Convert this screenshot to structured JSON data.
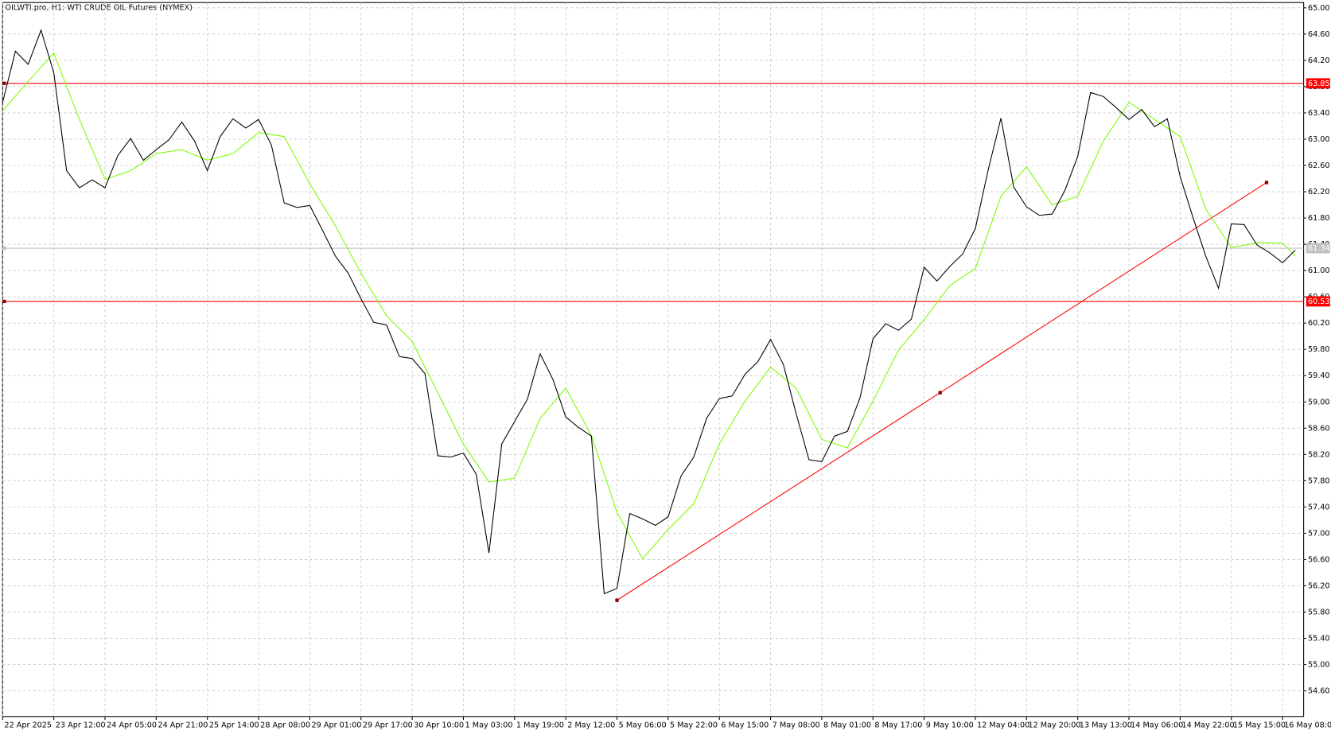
{
  "chart_data": {
    "type": "line",
    "title": "OILWTI.pro, H1:  WTI CRUDE OIL Futures (NYMEX)",
    "grid": true,
    "xlim": [
      0,
      406.6
    ],
    "ylim": [
      54.21,
      65.08
    ],
    "xticks": [
      {
        "value": 0,
        "label": "22 Apr 2025"
      },
      {
        "value": 16,
        "label": "23 Apr 12:00"
      },
      {
        "value": 32,
        "label": "24 Apr 05:00"
      },
      {
        "value": 48,
        "label": "24 Apr 21:00"
      },
      {
        "value": 64,
        "label": "25 Apr 14:00"
      },
      {
        "value": 80,
        "label": "28 Apr 08:00"
      },
      {
        "value": 96,
        "label": "29 Apr 01:00"
      },
      {
        "value": 112,
        "label": "29 Apr 17:00"
      },
      {
        "value": 128,
        "label": "30 Apr 10:00"
      },
      {
        "value": 144,
        "label": "1 May 03:00"
      },
      {
        "value": 160,
        "label": "1 May 19:00"
      },
      {
        "value": 176,
        "label": "2 May 12:00"
      },
      {
        "value": 192,
        "label": "5 May 06:00"
      },
      {
        "value": 208,
        "label": "5 May 22:00"
      },
      {
        "value": 224,
        "label": "6 May 15:00"
      },
      {
        "value": 240,
        "label": "7 May 08:00"
      },
      {
        "value": 256,
        "label": "8 May 01:00"
      },
      {
        "value": 272,
        "label": "8 May 17:00"
      },
      {
        "value": 288,
        "label": "9 May 10:00"
      },
      {
        "value": 304,
        "label": "12 May 04:00"
      },
      {
        "value": 320,
        "label": "12 May 20:00"
      },
      {
        "value": 336,
        "label": "13 May 13:00"
      },
      {
        "value": 352,
        "label": "14 May 06:00"
      },
      {
        "value": 368,
        "label": "14 May 22:00"
      },
      {
        "value": 384,
        "label": "15 May 15:00"
      },
      {
        "value": 400,
        "label": "16 May 08:00"
      }
    ],
    "yticks": [
      {
        "value": 54.6,
        "label": "54.60"
      },
      {
        "value": 55,
        "label": "55.00"
      },
      {
        "value": 55.4,
        "label": "55.40"
      },
      {
        "value": 55.8,
        "label": "55.80"
      },
      {
        "value": 56.2,
        "label": "56.20"
      },
      {
        "value": 56.6,
        "label": "56.60"
      },
      {
        "value": 57,
        "label": "57.00"
      },
      {
        "value": 57.4,
        "label": "57.40"
      },
      {
        "value": 57.8,
        "label": "57.80"
      },
      {
        "value": 58.2,
        "label": "58.20"
      },
      {
        "value": 58.6,
        "label": "58.60"
      },
      {
        "value": 59,
        "label": "59.00"
      },
      {
        "value": 59.4,
        "label": "59.40"
      },
      {
        "value": 59.8,
        "label": "59.80"
      },
      {
        "value": 60.2,
        "label": "60.20"
      },
      {
        "value": 60.6,
        "label": "60.60"
      },
      {
        "value": 61,
        "label": "61.00"
      },
      {
        "value": 61.4,
        "label": "61.40"
      },
      {
        "value": 61.8,
        "label": "61.80"
      },
      {
        "value": 62.2,
        "label": "62.20"
      },
      {
        "value": 62.6,
        "label": "62.60"
      },
      {
        "value": 63,
        "label": "63.00"
      },
      {
        "value": 63.4,
        "label": "63.40"
      },
      {
        "value": 63.8,
        "label": "63.80"
      },
      {
        "value": 64.2,
        "label": "64.20"
      },
      {
        "value": 64.6,
        "label": "64.60"
      },
      {
        "value": 65,
        "label": "65.00"
      }
    ],
    "series": [
      {
        "color": "#000000",
        "x": [
          0,
          4,
          8,
          12,
          16,
          20,
          24,
          28,
          32,
          36,
          40,
          44,
          48,
          52,
          56,
          60,
          64,
          68,
          72,
          76,
          80,
          84,
          88,
          92,
          96,
          100,
          104,
          108,
          112,
          116,
          120,
          124,
          128,
          132,
          136,
          140,
          144,
          148,
          152,
          156,
          160,
          164,
          168,
          172,
          176,
          180,
          184,
          188,
          192,
          196,
          200,
          204,
          208,
          212,
          216,
          220,
          224,
          228,
          232,
          236,
          240,
          244,
          248,
          252,
          256,
          260,
          264,
          268,
          272,
          276,
          280,
          284,
          288,
          292,
          296,
          300,
          304,
          308,
          312,
          316,
          320,
          324,
          328,
          332,
          336,
          340,
          344,
          348,
          352,
          356,
          360,
          364,
          368,
          372,
          376,
          380,
          384,
          388,
          392,
          396,
          400,
          404
        ],
        "values": [
          63.56,
          64.34,
          64.14,
          64.66,
          64.01,
          62.52,
          62.26,
          62.38,
          62.26,
          62.75,
          63.01,
          62.68,
          62.84,
          62.99,
          63.26,
          62.97,
          62.52,
          63.04,
          63.31,
          63.17,
          63.3,
          62.91,
          62.03,
          61.96,
          61.99,
          61.61,
          61.22,
          60.96,
          60.57,
          60.21,
          60.17,
          59.69,
          59.66,
          59.43,
          58.18,
          58.16,
          58.22,
          57.9,
          56.7,
          58.36,
          58.7,
          59.04,
          59.73,
          59.34,
          58.77,
          58.61,
          58.48,
          56.08,
          56.16,
          57.3,
          57.22,
          57.12,
          57.25,
          57.87,
          58.16,
          58.75,
          59.05,
          59.09,
          59.42,
          59.61,
          59.95,
          59.57,
          58.82,
          58.12,
          58.09,
          58.48,
          58.55,
          59.07,
          59.96,
          60.19,
          60.09,
          60.26,
          61.05,
          60.84,
          61.06,
          61.25,
          61.64,
          62.53,
          63.32,
          62.27,
          61.97,
          61.84,
          61.86,
          62.22,
          62.74,
          63.71,
          63.65,
          63.48,
          63.3,
          63.45,
          63.19,
          63.31,
          62.43,
          61.81,
          61.22,
          60.73,
          61.71,
          61.7,
          61.39,
          61.27,
          61.12,
          61.31
        ]
      },
      {
        "color": "#7cfc00",
        "x": [
          0,
          8,
          16,
          24,
          32,
          40,
          48,
          56,
          64,
          72,
          80,
          88,
          96,
          104,
          112,
          120,
          128,
          136,
          144,
          152,
          160,
          168,
          176,
          184,
          192,
          200,
          208,
          216,
          224,
          232,
          240,
          248,
          256,
          264,
          272,
          280,
          288,
          296,
          304,
          312,
          320,
          328,
          336,
          344,
          352,
          360,
          368,
          376,
          384,
          392,
          400,
          404
        ],
        "values": [
          63.43,
          63.88,
          64.31,
          63.3,
          62.39,
          62.52,
          62.78,
          62.84,
          62.68,
          62.78,
          63.1,
          63.04,
          62.32,
          61.68,
          60.96,
          60.31,
          59.92,
          59.14,
          58.36,
          57.78,
          57.84,
          58.75,
          59.21,
          58.49,
          57.32,
          56.61,
          57.06,
          57.45,
          58.36,
          59.01,
          59.53,
          59.21,
          58.43,
          58.3,
          59.01,
          59.79,
          60.25,
          60.77,
          61.03,
          62.13,
          62.58,
          62.0,
          62.13,
          62.97,
          63.56,
          63.3,
          63.04,
          61.94,
          61.35,
          61.42,
          61.42,
          61.22
        ]
      }
    ],
    "levels": [
      {
        "value": 63.85,
        "color": "#ff0000"
      },
      {
        "value": 61.34,
        "color": "#c0c0c0"
      },
      {
        "value": 60.53,
        "color": "#ff0000"
      }
    ],
    "trendline": {
      "x": [
        192,
        293,
        395
      ],
      "values": [
        55.98,
        59.14,
        62.34
      ],
      "color": "#ff0000"
    }
  }
}
